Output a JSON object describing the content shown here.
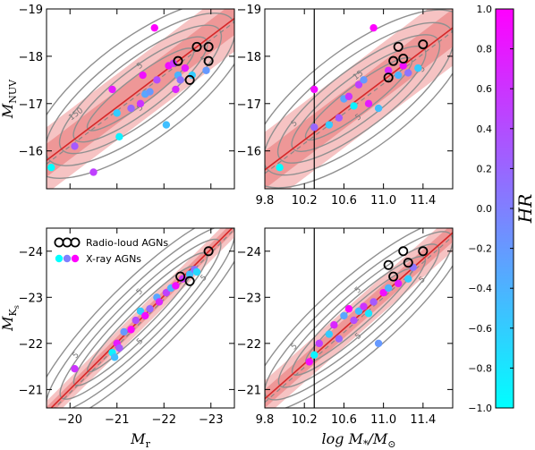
{
  "colors": {
    "fit_line": "#d62728",
    "band_outer": "#f4b8b8",
    "band_inner": "#ec8f8f",
    "contour": "#909090",
    "radio_marker": "#000000",
    "cmap_low": "#00ffff",
    "cmap_high": "#ff00ff"
  },
  "colorbar": {
    "label": "HR",
    "min": -1.0,
    "max": 1.0,
    "ticks": [
      -1.0,
      -0.8,
      -0.6,
      -0.4,
      -0.2,
      0.0,
      0.2,
      0.4,
      0.6,
      0.8,
      1.0
    ],
    "tick_labels": [
      "−1.0",
      "−0.8",
      "−0.6",
      "−0.4",
      "−0.2",
      "0.0",
      "0.2",
      "0.4",
      "0.6",
      "0.8",
      "1.0"
    ]
  },
  "legend": {
    "radio_label": "Radio-loud AGNs",
    "xray_label": "X-ray AGNs",
    "xray_marker_hr": [
      -1.0,
      0.0,
      1.0
    ]
  },
  "chart_data": [
    {
      "type": "scatter",
      "panel": "top-left",
      "xlabel": "",
      "ylabel_main": "M",
      "ylabel_sub": "NUV",
      "xlim": [
        -19.5,
        -23.5
      ],
      "ylim": [
        -15.2,
        -19.0
      ],
      "x_ticks": [
        -20,
        -21,
        -22,
        -23
      ],
      "x_tick_labels": [
        "",
        "",
        "",
        ""
      ],
      "y_ticks": [
        -16,
        -17,
        -18,
        -19
      ],
      "y_tick_labels": [
        "−16",
        "−17",
        "−18",
        "−19"
      ],
      "fit_line": [
        [
          -19.5,
          -15.8
        ],
        [
          -23.5,
          -18.8
        ]
      ],
      "band_inner_halfwidth": 0.35,
      "band_outer_halfwidth": 0.7,
      "contour_labels": [
        "150",
        "5",
        "5",
        "5"
      ],
      "xray_points": [
        {
          "x": -19.6,
          "y": -15.65,
          "hr": -1.0
        },
        {
          "x": -20.1,
          "y": -16.1,
          "hr": 0.3
        },
        {
          "x": -20.5,
          "y": -15.55,
          "hr": 0.5
        },
        {
          "x": -20.9,
          "y": -17.3,
          "hr": 0.8
        },
        {
          "x": -21.0,
          "y": -16.8,
          "hr": -0.6
        },
        {
          "x": -21.05,
          "y": -16.3,
          "hr": -0.9
        },
        {
          "x": -21.3,
          "y": -16.9,
          "hr": 0.2
        },
        {
          "x": -21.5,
          "y": -17.0,
          "hr": 0.6
        },
        {
          "x": -21.55,
          "y": -17.6,
          "hr": 0.9
        },
        {
          "x": -21.6,
          "y": -17.2,
          "hr": -0.3
        },
        {
          "x": -21.7,
          "y": -17.25,
          "hr": -0.2
        },
        {
          "x": -21.8,
          "y": -18.6,
          "hr": 1.0
        },
        {
          "x": -21.85,
          "y": -17.5,
          "hr": 0.4
        },
        {
          "x": -22.05,
          "y": -16.55,
          "hr": -0.5
        },
        {
          "x": -22.1,
          "y": -17.8,
          "hr": 0.9
        },
        {
          "x": -22.2,
          "y": -17.85,
          "hr": 0.6
        },
        {
          "x": -22.25,
          "y": -17.3,
          "hr": 0.7
        },
        {
          "x": -22.3,
          "y": -17.6,
          "hr": -0.4
        },
        {
          "x": -22.35,
          "y": -17.5,
          "hr": 0.1
        },
        {
          "x": -22.45,
          "y": -17.75,
          "hr": 0.8
        },
        {
          "x": -22.6,
          "y": -17.6,
          "hr": -0.6
        },
        {
          "x": -22.9,
          "y": -17.7,
          "hr": -0.2
        }
      ],
      "radio_points": [
        {
          "x": -22.3,
          "y": -17.9
        },
        {
          "x": -22.55,
          "y": -17.5
        },
        {
          "x": -22.7,
          "y": -18.2
        },
        {
          "x": -22.95,
          "y": -18.2
        },
        {
          "x": -22.95,
          "y": -17.9
        }
      ],
      "vline": null,
      "show_legend": false
    },
    {
      "type": "scatter",
      "panel": "top-right",
      "xlabel": "",
      "ylabel_main": "",
      "ylabel_sub": "",
      "xlim": [
        9.8,
        11.7
      ],
      "ylim": [
        -15.2,
        -19.0
      ],
      "x_ticks": [
        9.8,
        10.2,
        10.6,
        11.0,
        11.4
      ],
      "x_tick_labels": [
        "9.8",
        "10.2",
        "10.6",
        "11.0",
        "11.4"
      ],
      "y_ticks": [
        -16,
        -17,
        -18,
        -19
      ],
      "y_tick_labels": [
        "−16",
        "−17",
        "−18",
        "−19"
      ],
      "fit_line": [
        [
          9.8,
          -15.6
        ],
        [
          11.7,
          -18.6
        ]
      ],
      "band_inner_halfwidth": 0.4,
      "band_outer_halfwidth": 0.8,
      "contour_labels": [
        "5",
        "5",
        "15",
        "5"
      ],
      "xray_points": [
        {
          "x": 9.95,
          "y": -15.65,
          "hr": -1.0
        },
        {
          "x": 10.3,
          "y": -17.3,
          "hr": 0.9
        },
        {
          "x": 10.3,
          "y": -16.5,
          "hr": 0.2
        },
        {
          "x": 10.45,
          "y": -16.55,
          "hr": -0.6
        },
        {
          "x": 10.55,
          "y": -16.7,
          "hr": 0.3
        },
        {
          "x": 10.6,
          "y": -17.1,
          "hr": -0.3
        },
        {
          "x": 10.65,
          "y": -17.15,
          "hr": 0.6
        },
        {
          "x": 10.7,
          "y": -16.95,
          "hr": -0.9
        },
        {
          "x": 10.75,
          "y": -17.4,
          "hr": 0.5
        },
        {
          "x": 10.8,
          "y": -17.5,
          "hr": -0.2
        },
        {
          "x": 10.85,
          "y": -17.0,
          "hr": 0.8
        },
        {
          "x": 10.9,
          "y": -18.6,
          "hr": 1.0
        },
        {
          "x": 10.95,
          "y": -16.9,
          "hr": -0.5
        },
        {
          "x": 11.05,
          "y": -17.7,
          "hr": 0.7
        },
        {
          "x": 11.15,
          "y": -17.6,
          "hr": -0.4
        },
        {
          "x": 11.2,
          "y": -17.8,
          "hr": 0.9
        },
        {
          "x": 11.25,
          "y": -17.65,
          "hr": 0.1
        },
        {
          "x": 11.35,
          "y": -17.75,
          "hr": -0.6
        }
      ],
      "radio_points": [
        {
          "x": 11.05,
          "y": -17.55
        },
        {
          "x": 11.1,
          "y": -17.9
        },
        {
          "x": 11.15,
          "y": -18.2
        },
        {
          "x": 11.2,
          "y": -17.95
        },
        {
          "x": 11.4,
          "y": -18.25
        }
      ],
      "vline": 10.3,
      "show_legend": false
    },
    {
      "type": "scatter",
      "panel": "bottom-left",
      "xlabel_main": "M",
      "xlabel_sub": "r",
      "ylabel_main": "M",
      "ylabel_sub": "K",
      "ylabel_subsub": "s",
      "xlim": [
        -19.5,
        -23.5
      ],
      "ylim": [
        -20.6,
        -24.5
      ],
      "x_ticks": [
        -20,
        -21,
        -22,
        -23
      ],
      "x_tick_labels": [
        "−20",
        "−21",
        "−22",
        "−23"
      ],
      "y_ticks": [
        -21,
        -22,
        -23,
        -24
      ],
      "y_tick_labels": [
        "−21",
        "−22",
        "−23",
        "−24"
      ],
      "fit_line": [
        [
          -19.5,
          -20.5
        ],
        [
          -23.5,
          -24.55
        ]
      ],
      "band_inner_halfwidth": 0.12,
      "band_outer_halfwidth": 0.25,
      "contour_labels": [
        "5",
        "5",
        "5",
        "5"
      ],
      "xray_points": [
        {
          "x": -20.1,
          "y": -21.45,
          "hr": 0.6
        },
        {
          "x": -20.9,
          "y": -21.8,
          "hr": -0.9
        },
        {
          "x": -20.95,
          "y": -21.7,
          "hr": -0.5
        },
        {
          "x": -21.0,
          "y": -22.0,
          "hr": 0.8
        },
        {
          "x": -21.05,
          "y": -21.9,
          "hr": 0.3
        },
        {
          "x": -21.15,
          "y": -22.25,
          "hr": -0.2
        },
        {
          "x": -21.3,
          "y": -22.3,
          "hr": 1.0
        },
        {
          "x": -21.4,
          "y": -22.5,
          "hr": 0.4
        },
        {
          "x": -21.5,
          "y": -22.7,
          "hr": -0.6
        },
        {
          "x": -21.6,
          "y": -22.6,
          "hr": 0.9
        },
        {
          "x": -21.7,
          "y": -22.75,
          "hr": 0.2
        },
        {
          "x": -21.85,
          "y": -23.0,
          "hr": -0.3
        },
        {
          "x": -21.9,
          "y": -22.9,
          "hr": 0.7
        },
        {
          "x": -22.05,
          "y": -23.1,
          "hr": 0.5
        },
        {
          "x": -22.15,
          "y": -23.2,
          "hr": -0.4
        },
        {
          "x": -22.25,
          "y": -23.25,
          "hr": 0.9
        },
        {
          "x": -22.4,
          "y": -23.4,
          "hr": 0.6
        },
        {
          "x": -22.55,
          "y": -23.5,
          "hr": -0.5
        },
        {
          "x": -22.65,
          "y": -23.6,
          "hr": 0.1
        },
        {
          "x": -22.7,
          "y": -23.55,
          "hr": -0.7
        }
      ],
      "radio_points": [
        {
          "x": -22.35,
          "y": -23.45
        },
        {
          "x": -22.55,
          "y": -23.35
        },
        {
          "x": -22.95,
          "y": -24.0
        }
      ],
      "vline": null,
      "show_legend": true
    },
    {
      "type": "scatter",
      "panel": "bottom-right",
      "xlabel_main": "log M",
      "xlabel_sub": "*",
      "xlabel_tail": "/M",
      "xlabel_tail_sub": "⊙",
      "ylabel_main": "",
      "ylabel_sub": "",
      "xlim": [
        9.8,
        11.7
      ],
      "ylim": [
        -20.6,
        -24.5
      ],
      "x_ticks": [
        9.8,
        10.2,
        10.6,
        11.0,
        11.4
      ],
      "x_tick_labels": [
        "9.8",
        "10.2",
        "10.6",
        "11.0",
        "11.4"
      ],
      "y_ticks": [
        -21,
        -22,
        -23,
        -24
      ],
      "y_tick_labels": [
        "−21",
        "−22",
        "−23",
        "−24"
      ],
      "fit_line": [
        [
          9.8,
          -20.8
        ],
        [
          11.7,
          -24.4
        ]
      ],
      "band_inner_halfwidth": 0.2,
      "band_outer_halfwidth": 0.4,
      "contour_labels": [
        "5",
        "5",
        "5",
        "5"
      ],
      "xray_points": [
        {
          "x": 10.25,
          "y": -21.6,
          "hr": 0.9
        },
        {
          "x": 10.3,
          "y": -21.75,
          "hr": -0.9
        },
        {
          "x": 10.35,
          "y": -22.0,
          "hr": 0.5
        },
        {
          "x": 10.45,
          "y": -22.2,
          "hr": -0.6
        },
        {
          "x": 10.5,
          "y": -22.4,
          "hr": 0.7
        },
        {
          "x": 10.55,
          "y": -22.1,
          "hr": 0.2
        },
        {
          "x": 10.6,
          "y": -22.6,
          "hr": -0.3
        },
        {
          "x": 10.65,
          "y": -22.75,
          "hr": 1.0
        },
        {
          "x": 10.7,
          "y": -22.5,
          "hr": 0.4
        },
        {
          "x": 10.75,
          "y": -22.7,
          "hr": -0.5
        },
        {
          "x": 10.8,
          "y": -22.8,
          "hr": 0.6
        },
        {
          "x": 10.85,
          "y": -22.65,
          "hr": -0.8
        },
        {
          "x": 10.9,
          "y": -22.9,
          "hr": 0.3
        },
        {
          "x": 10.95,
          "y": -22.0,
          "hr": -0.2
        },
        {
          "x": 11.0,
          "y": -23.1,
          "hr": 0.9
        },
        {
          "x": 11.05,
          "y": -23.2,
          "hr": -0.4
        },
        {
          "x": 11.15,
          "y": -23.3,
          "hr": 0.8
        },
        {
          "x": 11.25,
          "y": -23.4,
          "hr": -0.6
        },
        {
          "x": 11.3,
          "y": -23.65,
          "hr": 0.1
        }
      ],
      "radio_points": [
        {
          "x": 11.05,
          "y": -23.7
        },
        {
          "x": 11.1,
          "y": -23.45
        },
        {
          "x": 11.2,
          "y": -24.0
        },
        {
          "x": 11.25,
          "y": -23.75
        },
        {
          "x": 11.4,
          "y": -24.0
        }
      ],
      "vline": 10.3,
      "show_legend": false
    }
  ]
}
